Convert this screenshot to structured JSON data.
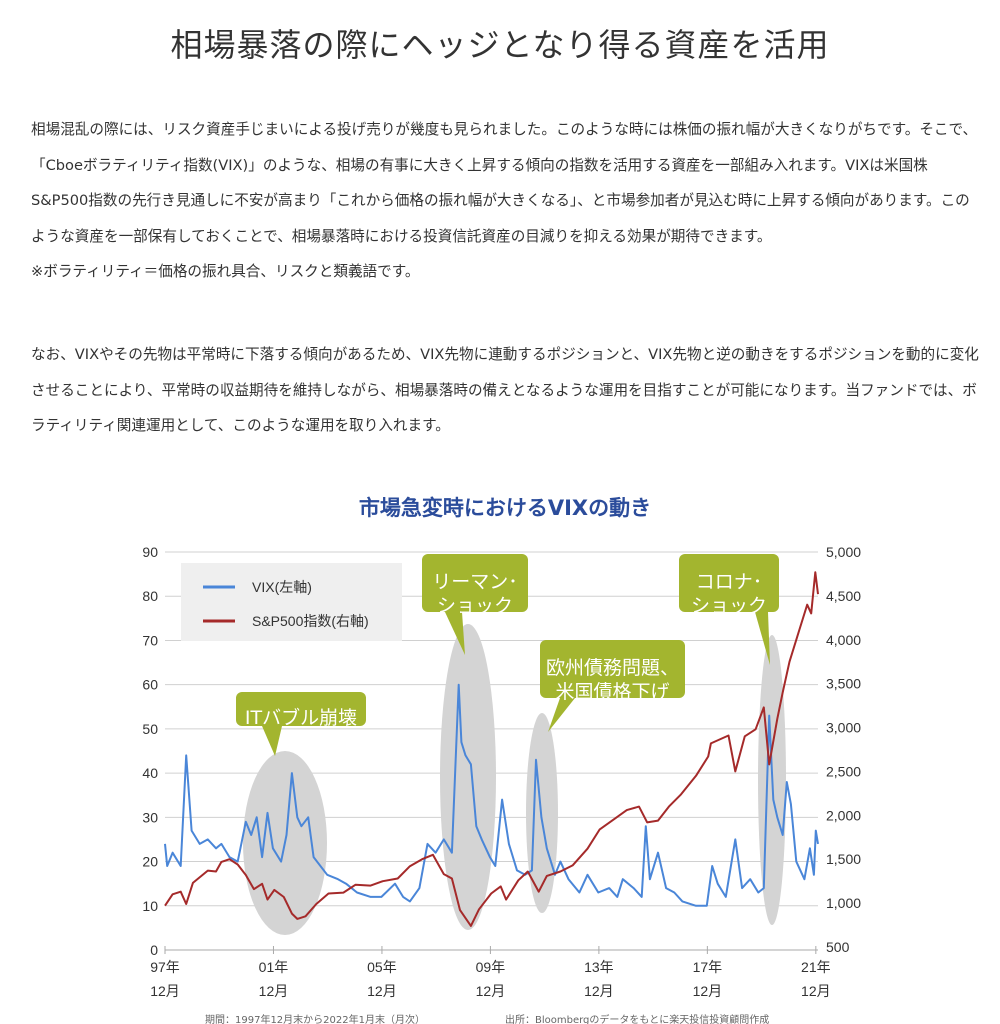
{
  "page": {
    "title": "相場暴落の際にヘッジとなり得る資産を活用",
    "paragraph1": "相場混乱の際には、リスク資産手じまいによる投げ売りが幾度も見られました。このような時には株価の振れ幅が大きくなりがちです。そこで、「Cboeボラティリティ指数(VIX)」のような、相場の有事に大きく上昇する傾向の指数を活用する資産を一部組み入れます。VIXは米国株S&P500指数の先行き見通しに不安が高まり「これから価格の振れ幅が大きくなる」、と市場参加者が見込む時に上昇する傾向があります。このような資産を一部保有しておくことで、相場暴落時における投資信託資産の目減りを抑える効果が期待できます。",
    "footnote": "※ボラティリティ＝価格の振れ具合、リスクと類義語です。",
    "paragraph2": "なお、VIXやその先物は平常時に下落する傾向があるため、VIX先物に連動するポジションと、VIX先物と逆の動きをするポジションを動的に変化させることにより、平常時の収益期待を維持しながら、相場暴落時の備えとなるような運用を目指すことが可能になります。当ファンドでは、ボラティリティ関連運用として、このような運用を取り入れます。"
  },
  "chart_data": {
    "type": "line",
    "title": "市場急変時におけるVIXの動き",
    "left_axis": {
      "ticks": [
        "0",
        "10",
        "20",
        "30",
        "40",
        "50",
        "60",
        "70",
        "80",
        "90"
      ],
      "range": [
        0,
        90
      ]
    },
    "right_axis": {
      "ticks": [
        "500",
        "1,000",
        "1,500",
        "2,000",
        "2,500",
        "3,000",
        "3,500",
        "4,000",
        "4,500",
        "5,000"
      ],
      "range": [
        500,
        5000
      ]
    },
    "x_range": [
      1997.92,
      2022.0
    ],
    "x_ticks": [
      {
        "year": "97年",
        "month": "12月",
        "x": 1997.92
      },
      {
        "year": "01年",
        "month": "12月",
        "x": 2001.92
      },
      {
        "year": "05年",
        "month": "12月",
        "x": 2005.92
      },
      {
        "year": "09年",
        "month": "12月",
        "x": 2009.92
      },
      {
        "year": "13年",
        "month": "12月",
        "x": 2013.92
      },
      {
        "year": "17年",
        "month": "12月",
        "x": 2017.92
      },
      {
        "year": "21年",
        "month": "12月",
        "x": 2021.92
      }
    ],
    "legend": {
      "position": "top-left",
      "vix": "VIX(左軸)",
      "sp": "S&P500指数(右軸)"
    },
    "colors": {
      "vix": "#4a86d8",
      "sp": "#a52a2a",
      "bubble": "#a3b52f",
      "shade": "#d4d4d4",
      "title": "#2b4c9b"
    },
    "series": [
      {
        "name": "VIX(左軸)",
        "axis": "left",
        "points": [
          [
            1997.92,
            24
          ],
          [
            1998.0,
            19
          ],
          [
            1998.2,
            22
          ],
          [
            1998.5,
            19
          ],
          [
            1998.7,
            44
          ],
          [
            1998.9,
            27
          ],
          [
            1999.2,
            24
          ],
          [
            1999.5,
            25
          ],
          [
            1999.8,
            23
          ],
          [
            2000.0,
            24
          ],
          [
            2000.3,
            21
          ],
          [
            2000.6,
            20
          ],
          [
            2000.9,
            29
          ],
          [
            2001.1,
            26
          ],
          [
            2001.3,
            30
          ],
          [
            2001.5,
            21
          ],
          [
            2001.7,
            31
          ],
          [
            2001.9,
            23
          ],
          [
            2002.2,
            20
          ],
          [
            2002.4,
            26
          ],
          [
            2002.6,
            40
          ],
          [
            2002.8,
            30
          ],
          [
            2002.95,
            28
          ],
          [
            2003.2,
            30
          ],
          [
            2003.4,
            21
          ],
          [
            2003.9,
            17
          ],
          [
            2004.3,
            16
          ],
          [
            2004.6,
            15
          ],
          [
            2005.0,
            13
          ],
          [
            2005.5,
            12
          ],
          [
            2005.9,
            12
          ],
          [
            2006.4,
            15
          ],
          [
            2006.7,
            12
          ],
          [
            2006.95,
            11
          ],
          [
            2007.3,
            14
          ],
          [
            2007.6,
            24
          ],
          [
            2007.9,
            22
          ],
          [
            2008.2,
            25
          ],
          [
            2008.5,
            22
          ],
          [
            2008.75,
            60
          ],
          [
            2008.85,
            47
          ],
          [
            2009.0,
            44
          ],
          [
            2009.2,
            42
          ],
          [
            2009.4,
            28
          ],
          [
            2009.6,
            25
          ],
          [
            2009.9,
            21
          ],
          [
            2010.1,
            19
          ],
          [
            2010.35,
            34
          ],
          [
            2010.6,
            24
          ],
          [
            2010.9,
            18
          ],
          [
            2011.2,
            17
          ],
          [
            2011.45,
            18
          ],
          [
            2011.6,
            43
          ],
          [
            2011.8,
            30
          ],
          [
            2012.0,
            23
          ],
          [
            2012.3,
            17
          ],
          [
            2012.5,
            20
          ],
          [
            2012.8,
            16
          ],
          [
            2013.2,
            13
          ],
          [
            2013.5,
            17
          ],
          [
            2013.9,
            13
          ],
          [
            2014.3,
            14
          ],
          [
            2014.6,
            12
          ],
          [
            2014.8,
            16
          ],
          [
            2015.2,
            14
          ],
          [
            2015.5,
            12
          ],
          [
            2015.65,
            28
          ],
          [
            2015.8,
            16
          ],
          [
            2016.1,
            22
          ],
          [
            2016.4,
            14
          ],
          [
            2016.7,
            13
          ],
          [
            2017.0,
            11
          ],
          [
            2017.5,
            10
          ],
          [
            2017.9,
            10
          ],
          [
            2018.1,
            19
          ],
          [
            2018.3,
            15
          ],
          [
            2018.6,
            12
          ],
          [
            2018.95,
            25
          ],
          [
            2019.2,
            14
          ],
          [
            2019.5,
            16
          ],
          [
            2019.8,
            13
          ],
          [
            2020.0,
            14
          ],
          [
            2020.2,
            53
          ],
          [
            2020.35,
            34
          ],
          [
            2020.5,
            30
          ],
          [
            2020.7,
            26
          ],
          [
            2020.85,
            38
          ],
          [
            2021.0,
            33
          ],
          [
            2021.2,
            20
          ],
          [
            2021.5,
            16
          ],
          [
            2021.7,
            23
          ],
          [
            2021.85,
            17
          ],
          [
            2021.92,
            27
          ],
          [
            2022.0,
            24
          ]
        ]
      },
      {
        "name": "S&P500指数(右軸)",
        "axis": "right",
        "points": [
          [
            1997.92,
            970
          ],
          [
            1998.2,
            1100
          ],
          [
            1998.5,
            1130
          ],
          [
            1998.7,
            990
          ],
          [
            1998.95,
            1230
          ],
          [
            1999.5,
            1370
          ],
          [
            1999.8,
            1360
          ],
          [
            2000.0,
            1470
          ],
          [
            2000.3,
            1500
          ],
          [
            2000.6,
            1440
          ],
          [
            2000.9,
            1320
          ],
          [
            2001.2,
            1160
          ],
          [
            2001.5,
            1220
          ],
          [
            2001.7,
            1040
          ],
          [
            2001.95,
            1150
          ],
          [
            2002.3,
            1070
          ],
          [
            2002.6,
            880
          ],
          [
            2002.8,
            820
          ],
          [
            2003.1,
            850
          ],
          [
            2003.5,
            990
          ],
          [
            2003.95,
            1110
          ],
          [
            2004.5,
            1120
          ],
          [
            2004.95,
            1210
          ],
          [
            2005.5,
            1200
          ],
          [
            2005.95,
            1250
          ],
          [
            2006.5,
            1280
          ],
          [
            2006.95,
            1420
          ],
          [
            2007.4,
            1500
          ],
          [
            2007.8,
            1550
          ],
          [
            2008.2,
            1330
          ],
          [
            2008.5,
            1280
          ],
          [
            2008.8,
            920
          ],
          [
            2009.2,
            740
          ],
          [
            2009.5,
            930
          ],
          [
            2009.95,
            1110
          ],
          [
            2010.3,
            1190
          ],
          [
            2010.5,
            1040
          ],
          [
            2010.95,
            1260
          ],
          [
            2011.3,
            1360
          ],
          [
            2011.7,
            1130
          ],
          [
            2012.0,
            1310
          ],
          [
            2012.5,
            1360
          ],
          [
            2012.95,
            1430
          ],
          [
            2013.5,
            1620
          ],
          [
            2013.95,
            1840
          ],
          [
            2014.5,
            1960
          ],
          [
            2014.95,
            2060
          ],
          [
            2015.4,
            2100
          ],
          [
            2015.7,
            1920
          ],
          [
            2016.1,
            1940
          ],
          [
            2016.5,
            2100
          ],
          [
            2016.95,
            2240
          ],
          [
            2017.5,
            2450
          ],
          [
            2017.95,
            2670
          ],
          [
            2018.05,
            2820
          ],
          [
            2018.7,
            2910
          ],
          [
            2018.95,
            2500
          ],
          [
            2019.3,
            2900
          ],
          [
            2019.7,
            2980
          ],
          [
            2020.0,
            3230
          ],
          [
            2020.2,
            2580
          ],
          [
            2020.5,
            3100
          ],
          [
            2020.7,
            3400
          ],
          [
            2020.95,
            3750
          ],
          [
            2021.3,
            4100
          ],
          [
            2021.6,
            4400
          ],
          [
            2021.75,
            4300
          ],
          [
            2021.9,
            4770
          ],
          [
            2022.0,
            4520
          ]
        ]
      }
    ],
    "annotations": [
      {
        "label": "ITバブル崩壊",
        "x": 2002.0
      },
      {
        "label": "リーマン・ショック",
        "line1": "リーマン･",
        "line2": "ショック",
        "x": 2008.8
      },
      {
        "label": "欧州債務問題、米国債格下げ",
        "line1": "欧州債務問題、",
        "line2": "米国債格下げ",
        "x": 2011.6
      },
      {
        "label": "コロナ・ショック",
        "line1": "コロナ･",
        "line2": "ショック",
        "x": 2020.2
      }
    ],
    "notes": {
      "period": "期間：1997年12月末から2022年1月末（月次）",
      "source": "出所：Bloombergのデータをもとに楽天投信投資顧問作成"
    }
  }
}
